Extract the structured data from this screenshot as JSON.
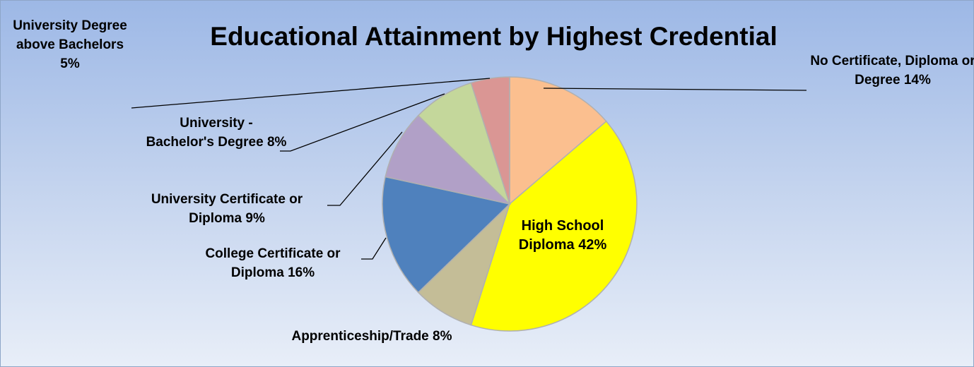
{
  "chart_data": {
    "type": "pie",
    "title": "Educational Attainment by Highest Credential",
    "categories": [
      "No Certificate, Diploma or Degree",
      "High School Diploma",
      "Apprenticeship/Trade",
      "College Certificate or Diploma",
      "University Certificate or Diploma",
      "University - Bachelor's Degree",
      "University Degree above Bachelors"
    ],
    "values": [
      14,
      42,
      8,
      16,
      9,
      8,
      5
    ],
    "value_labels": [
      "14%",
      "42%",
      "8%",
      "16%",
      "9%",
      "8%",
      "5%"
    ],
    "colors": [
      "#FBBF8F",
      "#FFFF00",
      "#C4BD97",
      "#4F81BD",
      "#B1A0C7",
      "#C4D79B",
      "#DA9694"
    ]
  }
}
